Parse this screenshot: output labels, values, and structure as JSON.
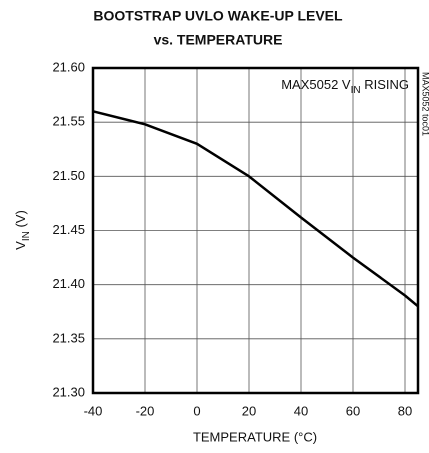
{
  "chart_data": {
    "type": "line",
    "title": [
      "BOOTSTRAP UVLO WAKE-UP LEVEL",
      "vs. TEMPERATURE"
    ],
    "y_label": [
      "V",
      "IN",
      " (V)"
    ],
    "x_label": "TEMPERATURE (°C)",
    "annotation": [
      "MAX5052 V",
      "IN",
      " RISING"
    ],
    "side_note": "MAX5052 toc01",
    "x": [
      -40,
      -20,
      0,
      20,
      40,
      60,
      80,
      85
    ],
    "series": [
      {
        "color": "#000000",
        "values": [
          21.56,
          21.548,
          21.53,
          21.5,
          21.462,
          21.425,
          21.39,
          21.38
        ]
      }
    ],
    "xlim": [
      -40,
      85
    ],
    "xticks": [
      -40,
      -20,
      0,
      20,
      40,
      60,
      80
    ],
    "ylim": [
      21.3,
      21.6
    ],
    "yticks": [
      {
        "value": 21.3,
        "label": "21.30"
      },
      21.35,
      {
        "value": 21.4,
        "label": "21.40"
      },
      21.45,
      {
        "value": 21.5,
        "label": "21.50"
      },
      21.55,
      {
        "value": 21.6,
        "label": "21.60"
      }
    ],
    "grid": true
  }
}
